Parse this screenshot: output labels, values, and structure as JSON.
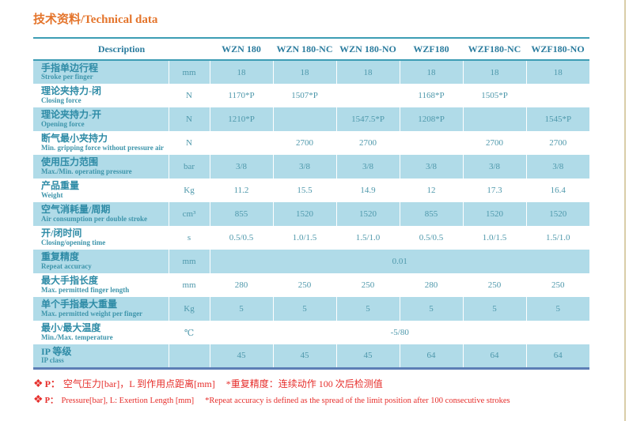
{
  "title": "技术资料/Technical data",
  "table": {
    "description_header": "Description",
    "columns": [
      "WZN 180",
      "WZN 180-NC",
      "WZN 180-NO",
      "WZF180",
      "WZF180-NC",
      "WZF180-NO"
    ],
    "rows": [
      {
        "zh": "手指单边行程",
        "en": "Stroke per finger",
        "unit": "mm",
        "values": [
          "18",
          "18",
          "18",
          "18",
          "18",
          "18"
        ]
      },
      {
        "zh": "理论夹持力-闭",
        "en": "Closing force",
        "unit": "N",
        "values": [
          "1170*P",
          "1507*P",
          "",
          "1168*P",
          "1505*P",
          ""
        ]
      },
      {
        "zh": "理论夹持力-开",
        "en": "Opening force",
        "unit": "N",
        "values": [
          "1210*P",
          "",
          "1547.5*P",
          "1208*P",
          "",
          "1545*P"
        ]
      },
      {
        "zh": "断气最小夹持力",
        "en": "Min. gripping force without pressure air",
        "unit": "N",
        "values": [
          "",
          "2700",
          "2700",
          "",
          "2700",
          "2700"
        ]
      },
      {
        "zh": "使用压力范围",
        "en": "Max./Min. operating pressure",
        "unit": "bar",
        "values": [
          "3/8",
          "3/8",
          "3/8",
          "3/8",
          "3/8",
          "3/8"
        ]
      },
      {
        "zh": "产品重量",
        "en": "Weight",
        "unit": "Kg",
        "values": [
          "11.2",
          "15.5",
          "14.9",
          "12",
          "17.3",
          "16.4"
        ]
      },
      {
        "zh": "空气消耗量/周期",
        "en": "Air consumption per double stroke",
        "unit": "cm³",
        "values": [
          "855",
          "1520",
          "1520",
          "855",
          "1520",
          "1520"
        ]
      },
      {
        "zh": "开/闭时间",
        "en": "Closing/opening time",
        "unit": "s",
        "values": [
          "0.5/0.5",
          "1.0/1.5",
          "1.5/1.0",
          "0.5/0.5",
          "1.0/1.5",
          "1.5/1.0"
        ]
      },
      {
        "zh": "重复精度",
        "en": "Repeat accuracy",
        "unit": "mm",
        "merged_value": "0.01"
      },
      {
        "zh": "最大手指长度",
        "en": "Max. permitted finger length",
        "unit": "mm",
        "values": [
          "280",
          "250",
          "250",
          "280",
          "250",
          "250"
        ]
      },
      {
        "zh": "单个手指最大重量",
        "en": "Max. permitted weight per finger",
        "unit": "Kg",
        "values": [
          "5",
          "5",
          "5",
          "5",
          "5",
          "5"
        ]
      },
      {
        "zh": "最小/最大温度",
        "en": "Min./Max. temperature",
        "unit": "℃",
        "merged_value": "-5/80"
      },
      {
        "zh": "IP 等级",
        "en": "IP class",
        "unit": "",
        "values": [
          "45",
          "45",
          "45",
          "64",
          "64",
          "64"
        ]
      }
    ]
  },
  "footnotes": [
    {
      "lang": "zh",
      "prefix": "P：",
      "body": "空气压力[bar]，L 到作用点距离[mm]",
      "note": "*重复精度：连续动作 100 次后检测值"
    },
    {
      "lang": "en",
      "prefix": "P：",
      "body": "Pressure[bar], L: Exertion Length [mm]",
      "note": "*Repeat accuracy is defined as the spread of the limit position after 100 consecutive strokes"
    }
  ],
  "icons": {
    "diamond": "❖"
  },
  "colors": {
    "accent_orange": "#E4742B",
    "table_border_teal": "#3D9DB4",
    "header_text": "#2B7C9E",
    "label_text": "#2E8BA6",
    "label_text_light": "#3E95AB",
    "value_text": "#4E98AB",
    "row_shade": "#B0DBE8",
    "bottom_border": "#5C7EB5",
    "footnote_red": "#E62E2B",
    "page_edge": "#D9CDA8"
  }
}
